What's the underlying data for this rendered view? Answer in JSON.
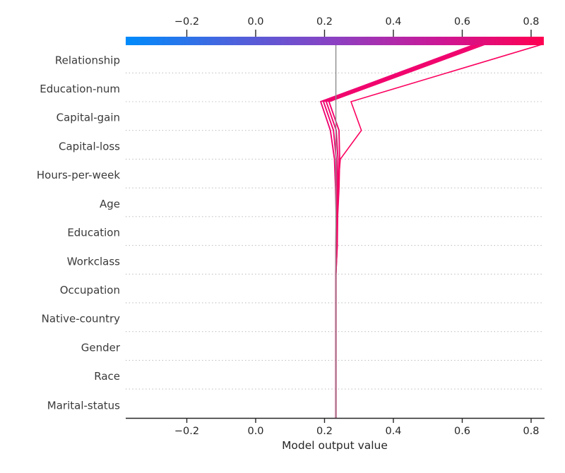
{
  "chart_data": {
    "type": "line",
    "variant": "shap-decision-plot",
    "title": "",
    "xlabel": "Model output value",
    "xlim": [
      -0.377,
      0.837
    ],
    "grid": "dotted horizontal per feature",
    "legend_position": "none",
    "base_value": 0.233,
    "x_ticks": [
      {
        "value": -0.2,
        "label": "−0.2"
      },
      {
        "value": 0.0,
        "label": "0.0"
      },
      {
        "value": 0.2,
        "label": "0.2"
      },
      {
        "value": 0.4,
        "label": "0.4"
      },
      {
        "value": 0.6,
        "label": "0.6"
      },
      {
        "value": 0.8,
        "label": "0.8"
      }
    ],
    "features_top_to_bottom": [
      "Relationship",
      "Education-num",
      "Capital-gain",
      "Capital-loss",
      "Hours-per-week",
      "Age",
      "Education",
      "Workclass",
      "Occupation",
      "Native-country",
      "Gender",
      "Race",
      "Marital-status"
    ],
    "colorbar": {
      "position": "top",
      "range": [
        -0.377,
        0.837
      ],
      "gradient_stops": [
        "#008bfb",
        "#4a63dd",
        "#8b41c2",
        "#cc1896",
        "#ff0051"
      ]
    },
    "series": [
      {
        "name": "observation-1",
        "color": "#ef0571",
        "width": 1.9,
        "cumulative_values_bottom_to_top": [
          0.233,
          0.233,
          0.233,
          0.233,
          0.233,
          0.233,
          0.233,
          0.234,
          0.232,
          0.229,
          0.217,
          0.189
        ],
        "model_output": 0.636
      },
      {
        "name": "observation-2",
        "color": "#f0056f",
        "width": 1.9,
        "cumulative_values_bottom_to_top": [
          0.233,
          0.233,
          0.233,
          0.233,
          0.233,
          0.233,
          0.2355,
          0.2355,
          0.236,
          0.234,
          0.226,
          0.197
        ],
        "model_output": 0.646
      },
      {
        "name": "observation-3",
        "color": "#f1056d",
        "width": 1.9,
        "cumulative_values_bottom_to_top": [
          0.233,
          0.233,
          0.233,
          0.233,
          0.233,
          0.233,
          0.2367,
          0.2374,
          0.239,
          0.239,
          0.234,
          0.205
        ],
        "model_output": 0.654
      },
      {
        "name": "observation-4",
        "color": "#f2046c",
        "width": 1.9,
        "cumulative_values_bottom_to_top": [
          0.233,
          0.233,
          0.233,
          0.233,
          0.233,
          0.233,
          0.237,
          0.238,
          0.242,
          0.244,
          0.242,
          0.213
        ],
        "model_output": 0.665
      },
      {
        "name": "observation-5",
        "color": "#fb0360",
        "width": 1.6,
        "cumulative_values_bottom_to_top": [
          0.233,
          0.233,
          0.233,
          0.233,
          0.233,
          0.233,
          0.236,
          0.236,
          0.239,
          0.246,
          0.307,
          0.277
        ],
        "model_output": 0.831
      }
    ],
    "reference_line": {
      "value": 0.233,
      "color": "#8c8c8c"
    },
    "colors": {
      "grid": "#b9b9b9",
      "axis": "#262626",
      "line_low": "#008bfb",
      "line_high": "#ff0051"
    }
  }
}
